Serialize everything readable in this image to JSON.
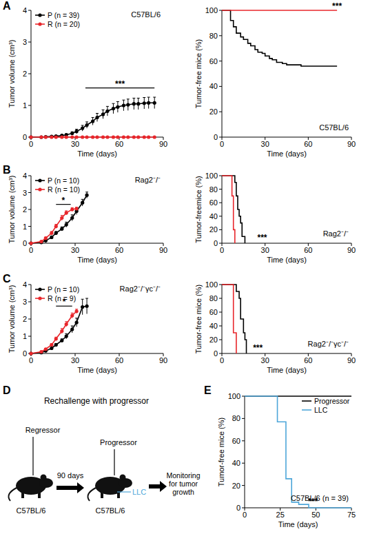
{
  "panel_labels": [
    "A",
    "B",
    "C",
    "D",
    "E"
  ],
  "chart_data": [
    {
      "type": "line",
      "title": "C57BL/6",
      "x_label": "Time (days)",
      "y_label": "Tumor volume (cm³)",
      "xlim": [
        0,
        90
      ],
      "xticks": [
        0,
        30,
        60,
        90
      ],
      "ylim": [
        0,
        4
      ],
      "yticks": [
        0,
        1,
        2,
        3,
        4
      ],
      "legend": "upper left",
      "series": [
        {
          "name": "P (n = 39)",
          "color": "#000000",
          "marker": "circle",
          "x": [
            0,
            7,
            10,
            14,
            17,
            21,
            24,
            28,
            31,
            35,
            38,
            42,
            45,
            49,
            52,
            56,
            59,
            63,
            66,
            70,
            73,
            77,
            80,
            84
          ],
          "values": [
            0,
            0,
            0.01,
            0.02,
            0.03,
            0.05,
            0.07,
            0.12,
            0.18,
            0.28,
            0.38,
            0.5,
            0.62,
            0.72,
            0.82,
            0.9,
            0.95,
            1.0,
            1.02,
            1.05,
            1.05,
            1.07,
            1.08,
            1.08
          ],
          "errors": [
            0,
            0,
            0.01,
            0.01,
            0.02,
            0.03,
            0.04,
            0.05,
            0.07,
            0.09,
            0.1,
            0.12,
            0.13,
            0.14,
            0.15,
            0.16,
            0.17,
            0.17,
            0.18,
            0.18,
            0.18,
            0.18,
            0.18,
            0.18
          ]
        },
        {
          "name": "R (n = 20)",
          "color": "#e8262b",
          "marker": "circle",
          "x": [
            0,
            7,
            10,
            14,
            17,
            21,
            24,
            28,
            31,
            35,
            38,
            42,
            45,
            49,
            52,
            56,
            59,
            63,
            66,
            70,
            73,
            77,
            80,
            84
          ],
          "values": [
            0,
            0,
            0,
            0,
            0,
            0,
            0,
            0,
            0,
            0,
            0,
            0,
            0,
            0,
            0,
            0,
            0,
            0,
            0,
            0,
            0,
            0,
            0,
            0
          ],
          "errors": [
            0,
            0,
            0,
            0,
            0,
            0,
            0,
            0,
            0,
            0,
            0,
            0,
            0,
            0,
            0,
            0,
            0,
            0,
            0,
            0,
            0,
            0,
            0,
            0
          ]
        }
      ],
      "annotations": [
        {
          "text": "***",
          "x": [
            37,
            84
          ],
          "y": 1.55
        }
      ]
    },
    {
      "type": "step",
      "title": "C57BL/6",
      "x_label": "Time (days)",
      "y_label": "Tumor-free mice (%)",
      "xlim": [
        0,
        90
      ],
      "xticks": [
        0,
        30,
        60,
        90
      ],
      "ylim": [
        0,
        100
      ],
      "yticks": [
        0,
        20,
        40,
        60,
        80,
        100
      ],
      "series": [
        {
          "name": "P",
          "color": "#000000",
          "x": [
            0,
            6,
            8,
            10,
            13,
            15,
            18,
            20,
            23,
            25,
            28,
            30,
            33,
            35,
            38,
            42,
            45,
            50,
            55,
            60,
            80
          ],
          "values": [
            100,
            92,
            87,
            82,
            79,
            77,
            74,
            72,
            69,
            67,
            66,
            64,
            62,
            61,
            59,
            58,
            57,
            57,
            56,
            56,
            56
          ]
        },
        {
          "name": "R",
          "color": "#e8262b",
          "x": [
            0,
            80
          ],
          "values": [
            100,
            100
          ]
        }
      ],
      "annotations": [
        {
          "text": "***",
          "x": [
            80
          ],
          "y": 100
        }
      ]
    },
    {
      "type": "line",
      "title": "Rag2⁻/⁻",
      "x_label": "Time (days)",
      "y_label": "Tumor volume (cm³)",
      "xlim": [
        0,
        90
      ],
      "xticks": [
        0,
        30,
        60,
        90
      ],
      "ylim": [
        0,
        4
      ],
      "yticks": [
        0,
        1,
        2,
        3,
        4
      ],
      "legend": "upper left",
      "series": [
        {
          "name": "P (n = 10)",
          "color": "#000000",
          "marker": "circle",
          "x": [
            0,
            7,
            10,
            14,
            17,
            21,
            24,
            28,
            31,
            35,
            38
          ],
          "values": [
            0,
            0.05,
            0.15,
            0.35,
            0.6,
            0.85,
            1.1,
            1.5,
            1.9,
            2.4,
            2.85
          ],
          "errors": [
            0,
            0.02,
            0.05,
            0.08,
            0.1,
            0.12,
            0.15,
            0.18,
            0.2,
            0.2,
            0.18
          ]
        },
        {
          "name": "R (n = 10)",
          "color": "#e8262b",
          "marker": "circle",
          "x": [
            0,
            7,
            10,
            14,
            17,
            21,
            24,
            28,
            31
          ],
          "values": [
            0,
            0.1,
            0.3,
            0.6,
            1.0,
            1.5,
            1.8,
            2.0,
            2.05
          ],
          "errors": [
            0,
            0.03,
            0.06,
            0.1,
            0.12,
            0.15,
            0.12,
            0.1,
            0.08
          ]
        }
      ],
      "annotations": [
        {
          "text": "*",
          "x": [
            17,
            27
          ],
          "y": 2.3
        }
      ]
    },
    {
      "type": "step",
      "title": "Rag2⁻/⁻",
      "x_label": "Time (days)",
      "y_label": "Tumor-freemice (%)",
      "xlim": [
        0,
        90
      ],
      "xticks": [
        0,
        30,
        60,
        90
      ],
      "ylim": [
        0,
        100
      ],
      "yticks": [
        0,
        20,
        40,
        60,
        80,
        100
      ],
      "series": [
        {
          "name": "P",
          "color": "#000000",
          "x": [
            0,
            8,
            9,
            10,
            11,
            12,
            13,
            14,
            16
          ],
          "values": [
            100,
            100,
            90,
            70,
            50,
            40,
            30,
            10,
            0
          ]
        },
        {
          "name": "R",
          "color": "#e8262b",
          "x": [
            0,
            6,
            7,
            8,
            9
          ],
          "values": [
            100,
            100,
            70,
            20,
            0
          ]
        }
      ],
      "annotations": [
        {
          "text": "***",
          "x": [
            28
          ],
          "y": 2
        }
      ]
    },
    {
      "type": "line",
      "title": "Rag2⁻/⁻γc⁻/⁻",
      "x_label": "Time (days)",
      "y_label": "Tumor volume (cm³)",
      "xlim": [
        0,
        90
      ],
      "xticks": [
        0,
        30,
        60,
        90
      ],
      "ylim": [
        0,
        4
      ],
      "yticks": [
        0,
        1,
        2,
        3,
        4
      ],
      "legend": "upper left",
      "series": [
        {
          "name": "P (n = 10)",
          "color": "#000000",
          "marker": "circle",
          "x": [
            0,
            7,
            10,
            14,
            17,
            21,
            24,
            28,
            31,
            35,
            38
          ],
          "values": [
            0,
            0.05,
            0.15,
            0.3,
            0.5,
            0.75,
            1.0,
            1.4,
            1.8,
            2.7,
            2.75
          ],
          "errors": [
            0,
            0.02,
            0.04,
            0.06,
            0.08,
            0.1,
            0.15,
            0.2,
            0.25,
            0.45,
            0.45
          ]
        },
        {
          "name": "R (n = 9)",
          "color": "#e8262b",
          "marker": "circle",
          "x": [
            0,
            7,
            10,
            14,
            17,
            21,
            24,
            28,
            31
          ],
          "values": [
            0,
            0.1,
            0.25,
            0.5,
            0.85,
            1.3,
            1.7,
            2.2,
            2.45
          ],
          "errors": [
            0,
            0.03,
            0.05,
            0.08,
            0.1,
            0.15,
            0.15,
            0.15,
            0.12
          ]
        }
      ],
      "annotations": [
        {
          "text": "*",
          "x": [
            17,
            28
          ],
          "y": 2.75
        }
      ]
    },
    {
      "type": "step",
      "title": "Rag2⁻/⁻γc⁻/⁻",
      "x_label": "Time (days)",
      "y_label": "Tumor-free mice (%)",
      "xlim": [
        0,
        90
      ],
      "xticks": [
        0,
        30,
        60,
        90
      ],
      "ylim": [
        0,
        100
      ],
      "yticks": [
        0,
        20,
        40,
        60,
        80,
        100
      ],
      "series": [
        {
          "name": "P",
          "color": "#000000",
          "x": [
            0,
            9,
            10,
            12,
            13,
            14,
            15,
            16,
            17
          ],
          "values": [
            100,
            100,
            90,
            80,
            50,
            50,
            30,
            20,
            0
          ]
        },
        {
          "name": "R",
          "color": "#e8262b",
          "x": [
            0,
            7,
            8,
            9,
            10
          ],
          "values": [
            100,
            100,
            30,
            30,
            0
          ]
        }
      ],
      "annotations": [
        {
          "text": "***",
          "x": [
            25
          ],
          "y": 2
        }
      ]
    },
    {
      "type": "step",
      "title": "C57BL/6 (n = 39)",
      "x_label": "Time (days)",
      "y_label": "Tumor-free mice (%)",
      "xlim": [
        0,
        75
      ],
      "xticks": [
        0,
        25,
        50,
        75
      ],
      "ylim": [
        0,
        100
      ],
      "yticks": [
        0,
        20,
        40,
        60,
        80,
        100
      ],
      "legend": "upper right",
      "series": [
        {
          "name": "Progressor",
          "color": "#000000",
          "x": [
            0,
            75
          ],
          "values": [
            100,
            100
          ]
        },
        {
          "name": "LLC",
          "color": "#4da6d9",
          "x": [
            0,
            20,
            23,
            26,
            29,
            33,
            38,
            45,
            75
          ],
          "values": [
            100,
            100,
            77,
            77,
            26,
            5,
            3,
            0,
            0
          ]
        }
      ],
      "annotations": [
        {
          "text": "***",
          "x": [
            48
          ],
          "y": 2
        }
      ]
    }
  ],
  "diagram": {
    "title": "Rechallenge with progressor",
    "regressor": "Regressor",
    "interval": "90 days",
    "mouse_left": "C57BL/6",
    "mouse_right": "C57BL/6",
    "progressor": "Progressor",
    "llc": "LLC",
    "monitor": [
      "Monitoring",
      "for tumor",
      "growth"
    ]
  }
}
